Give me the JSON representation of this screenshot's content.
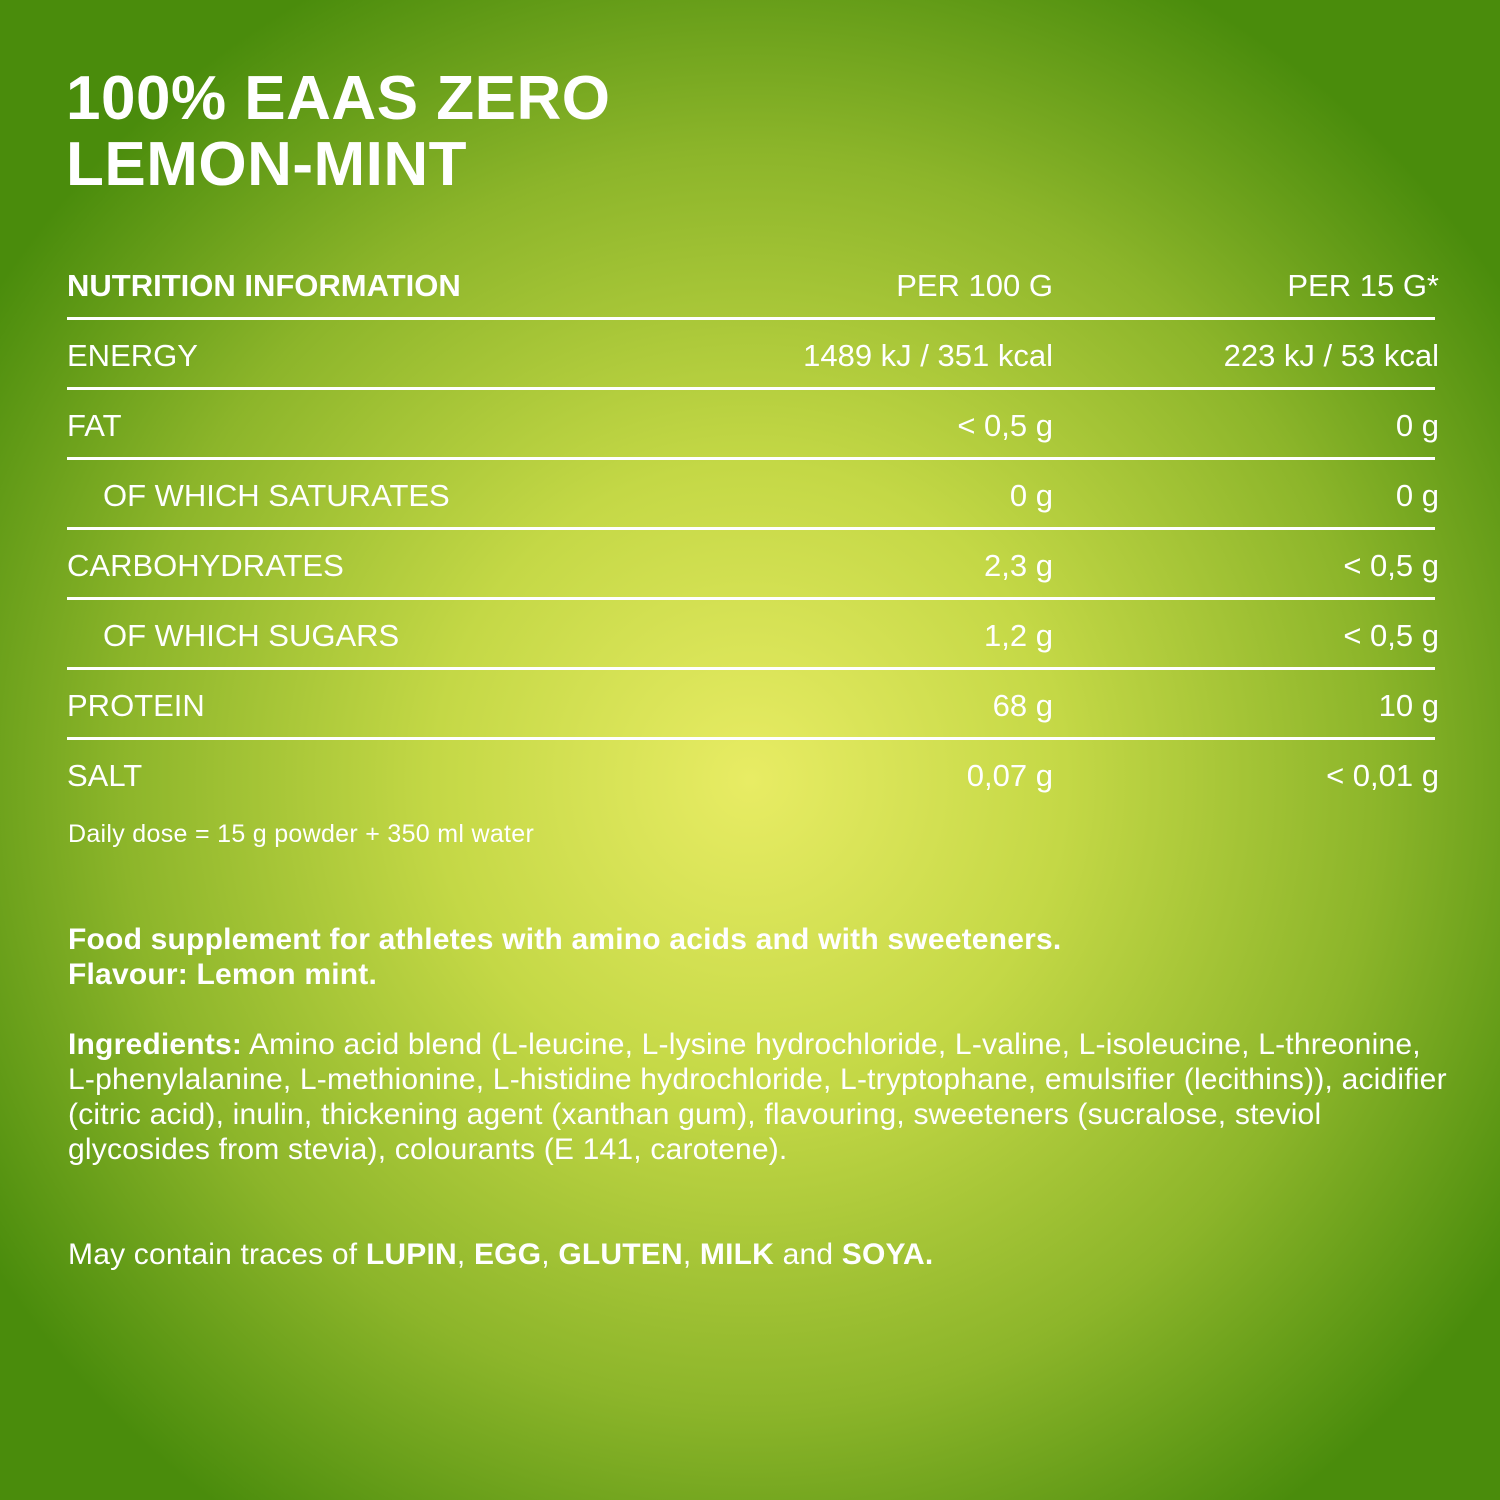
{
  "title": {
    "line1": "100% EAAS ZERO",
    "line2": "LEMON-MINT"
  },
  "table": {
    "headers": [
      "NUTRITION INFORMATION",
      "PER 100 G",
      "PER 15 G*"
    ],
    "rows": [
      {
        "label": "ENERGY",
        "per100": "1489 kJ / 351 kcal",
        "per15": "223 kJ / 53 kcal"
      },
      {
        "label": "FAT",
        "per100": "< 0,5 g",
        "per15": "0 g"
      },
      {
        "label": "OF WHICH SATURATES",
        "per100": "0 g",
        "per15": "0 g"
      },
      {
        "label": "CARBOHYDRATES",
        "per100": "2,3 g",
        "per15": "< 0,5 g"
      },
      {
        "label": "OF WHICH SUGARS",
        "per100": "1,2 g",
        "per15": "< 0,5 g"
      },
      {
        "label": "PROTEIN",
        "per100": "68 g",
        "per15": "10 g"
      },
      {
        "label": "SALT",
        "per100": "0,07 g",
        "per15": "< 0,01 g"
      }
    ]
  },
  "daily_dose": "Daily dose = 15 g powder + 350 ml water",
  "description": {
    "line1": "Food supplement for athletes with amino acids and with sweeteners.",
    "line2": "Flavour: Lemon mint."
  },
  "ingredients": {
    "label": "Ingredients:",
    "text": " Amino acid blend (L-leucine, L-lysine hydrochloride, L-valine, L-isoleucine, L-threonine, L-phenylalanine, L-methionine, L-histidine hydrochloride, L-tryptophane, emulsifier (lecithins)), acidifier (citric acid), inulin, thi­ckening agent (xanthan gum), flavouring, sweeteners (sucralose, steviol glycosides from stevia), colourants (E 141, carotene)."
  },
  "allergens": {
    "prefix": "May contain traces of ",
    "a1": "LUPIN",
    "s1": ", ",
    "a2": "EGG",
    "s2": ", ",
    "a3": "GLUTEN",
    "s3": ", ",
    "a4": "MILK",
    "s4": " and ",
    "a5": "SOYA."
  },
  "colors": {
    "text": "#ffffff",
    "center": "#e8ec64",
    "edge": "#4a8c0c"
  }
}
